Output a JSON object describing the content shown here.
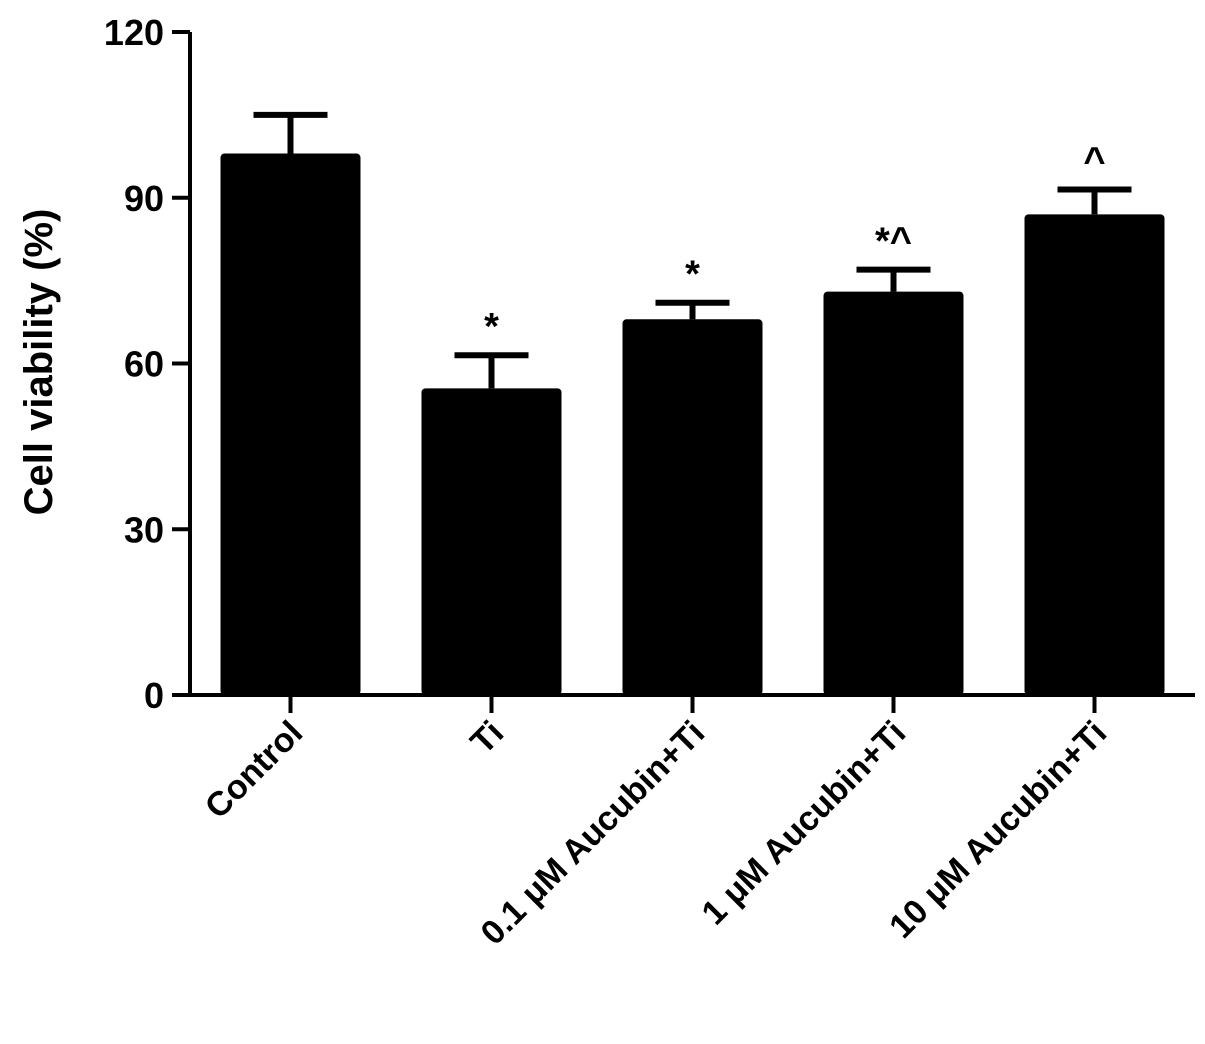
{
  "chart_data": {
    "type": "bar",
    "categories": [
      "Control",
      "Ti",
      "0.1 μM Aucubin+Ti",
      "1 μM Aucubin+Ti",
      "10 μM Aucubin+Ti"
    ],
    "values": [
      98,
      55.5,
      68,
      73,
      87
    ],
    "errors": [
      7,
      6,
      3,
      4,
      4.5
    ],
    "annotations": [
      "",
      "*",
      "*",
      "*^",
      "^"
    ],
    "ylabel": "Cell viability (%)",
    "xlabel": "",
    "title": "",
    "ylim": [
      0,
      120
    ],
    "yticks": [
      0,
      30,
      60,
      90,
      120
    ],
    "grid": false,
    "bar_color": "#000000"
  }
}
